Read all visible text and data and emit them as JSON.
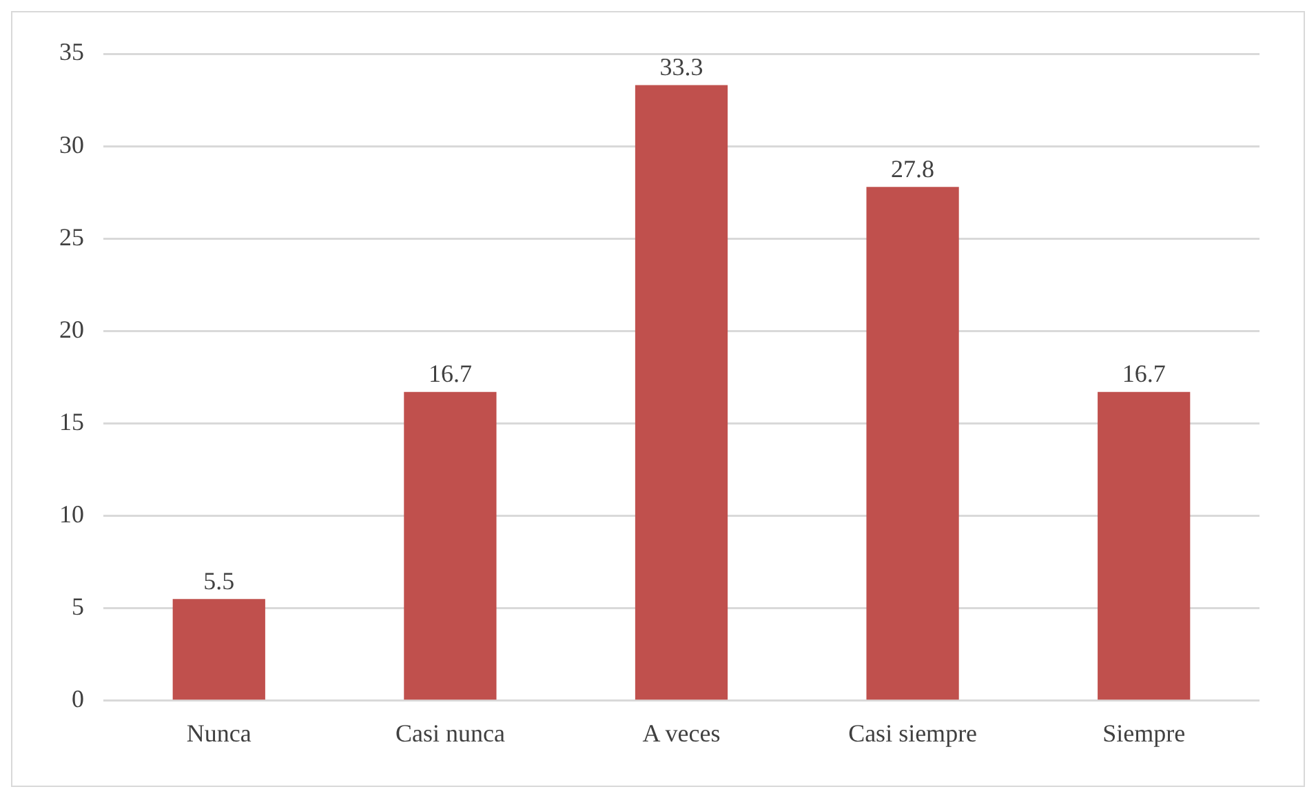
{
  "chart_data": {
    "type": "bar",
    "categories": [
      "Nunca",
      "Casi nunca",
      "A veces",
      "Casi siempre",
      "Siempre"
    ],
    "values": [
      5.5,
      16.7,
      33.3,
      27.8,
      16.7
    ],
    "color": "#c0504d",
    "ylim": [
      0,
      35
    ],
    "yticks": [
      0,
      5,
      10,
      15,
      20,
      25,
      30,
      35
    ],
    "grid": "y",
    "data_labels": true,
    "legend": false
  }
}
